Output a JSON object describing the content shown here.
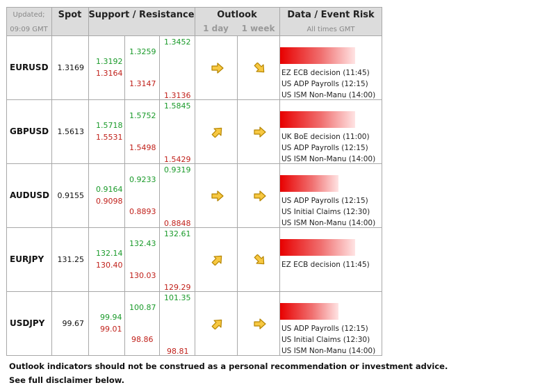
{
  "header": {
    "updated_label": "Updated;",
    "updated_time": "09:09 GMT",
    "spot": "Spot",
    "support_resistance": "Support / Resistance",
    "outlook": "Outlook",
    "outlook_1day": "1 day",
    "outlook_1week": "1 week",
    "data_event_risk": "Data / Event Risk",
    "all_times": "All times GMT"
  },
  "rows": [
    {
      "pair": "EURUSD",
      "spot": "1.3169",
      "s1r1": "1.3192",
      "s1s1": "1.3164",
      "s2r": "1.3259",
      "s2s": "1.3147",
      "s3r": "1.3452",
      "s3s": "1.3136",
      "outlook_day": "right-arrow-icon",
      "outlook_week": "down-right-arrow-icon",
      "risk_level": 0.76,
      "events": [
        "EZ ECB decision (11:45)",
        "US ADP Payrolls (12:15)",
        "US ISM Non-Manu (14:00)"
      ]
    },
    {
      "pair": "GBPUSD",
      "spot": "1.5613",
      "s1r1": "1.5718",
      "s1s1": "1.5531",
      "s2r": "1.5752",
      "s2s": "1.5498",
      "s3r": "1.5845",
      "s3s": "1.5429",
      "outlook_day": "up-right-arrow-icon",
      "outlook_week": "right-arrow-icon",
      "risk_level": 0.76,
      "events": [
        "UK BoE decision (11:00)",
        "US ADP Payrolls (12:15)",
        "US ISM Non-Manu (14:00)"
      ]
    },
    {
      "pair": "AUDUSD",
      "spot": "0.9155",
      "s1r1": "0.9164",
      "s1s1": "0.9098",
      "s2r": "0.9233",
      "s2s": "0.8893",
      "s3r": "0.9319",
      "s3s": "0.8848",
      "outlook_day": "right-arrow-icon",
      "outlook_week": "right-arrow-icon",
      "risk_level": 0.59,
      "events": [
        "US ADP Payrolls (12:15)",
        "US Initial Claims (12:30)",
        "US ISM Non-Manu (14:00)"
      ]
    },
    {
      "pair": "EURJPY",
      "spot": "131.25",
      "s1r1": "132.14",
      "s1s1": "130.40",
      "s2r": "132.43",
      "s2s": "130.03",
      "s3r": "132.61",
      "s3s": "129.29",
      "outlook_day": "up-right-arrow-icon",
      "outlook_week": "down-right-arrow-icon",
      "risk_level": 0.76,
      "events": [
        "EZ ECB decision (11:45)"
      ]
    },
    {
      "pair": "USDJPY",
      "spot": "99.67",
      "s1r1": "99.94",
      "s1s1": "99.01",
      "s2r": "100.87",
      "s2s": "98.86",
      "s3r": "101.35",
      "s3s": "98.81",
      "outlook_day": "up-right-arrow-icon",
      "outlook_week": "right-arrow-icon",
      "risk_level": 0.59,
      "events": [
        "US ADP Payrolls (12:15)",
        "US Initial Claims (12:30)",
        "US ISM Non-Manu (14:00)"
      ]
    }
  ],
  "footer": {
    "line1": "Outlook indicators should not be construed as a personal recommendation or investment advice.",
    "line2": "See full disclaimer below."
  },
  "colors": {
    "support_color": "#1a9a2a",
    "resistance_color": "#c0201a",
    "arrow_fill": "#f7c842",
    "arrow_stroke": "#b58400",
    "header_bg": "#dcdcdc",
    "risk_bar_strong": "#e80000"
  }
}
